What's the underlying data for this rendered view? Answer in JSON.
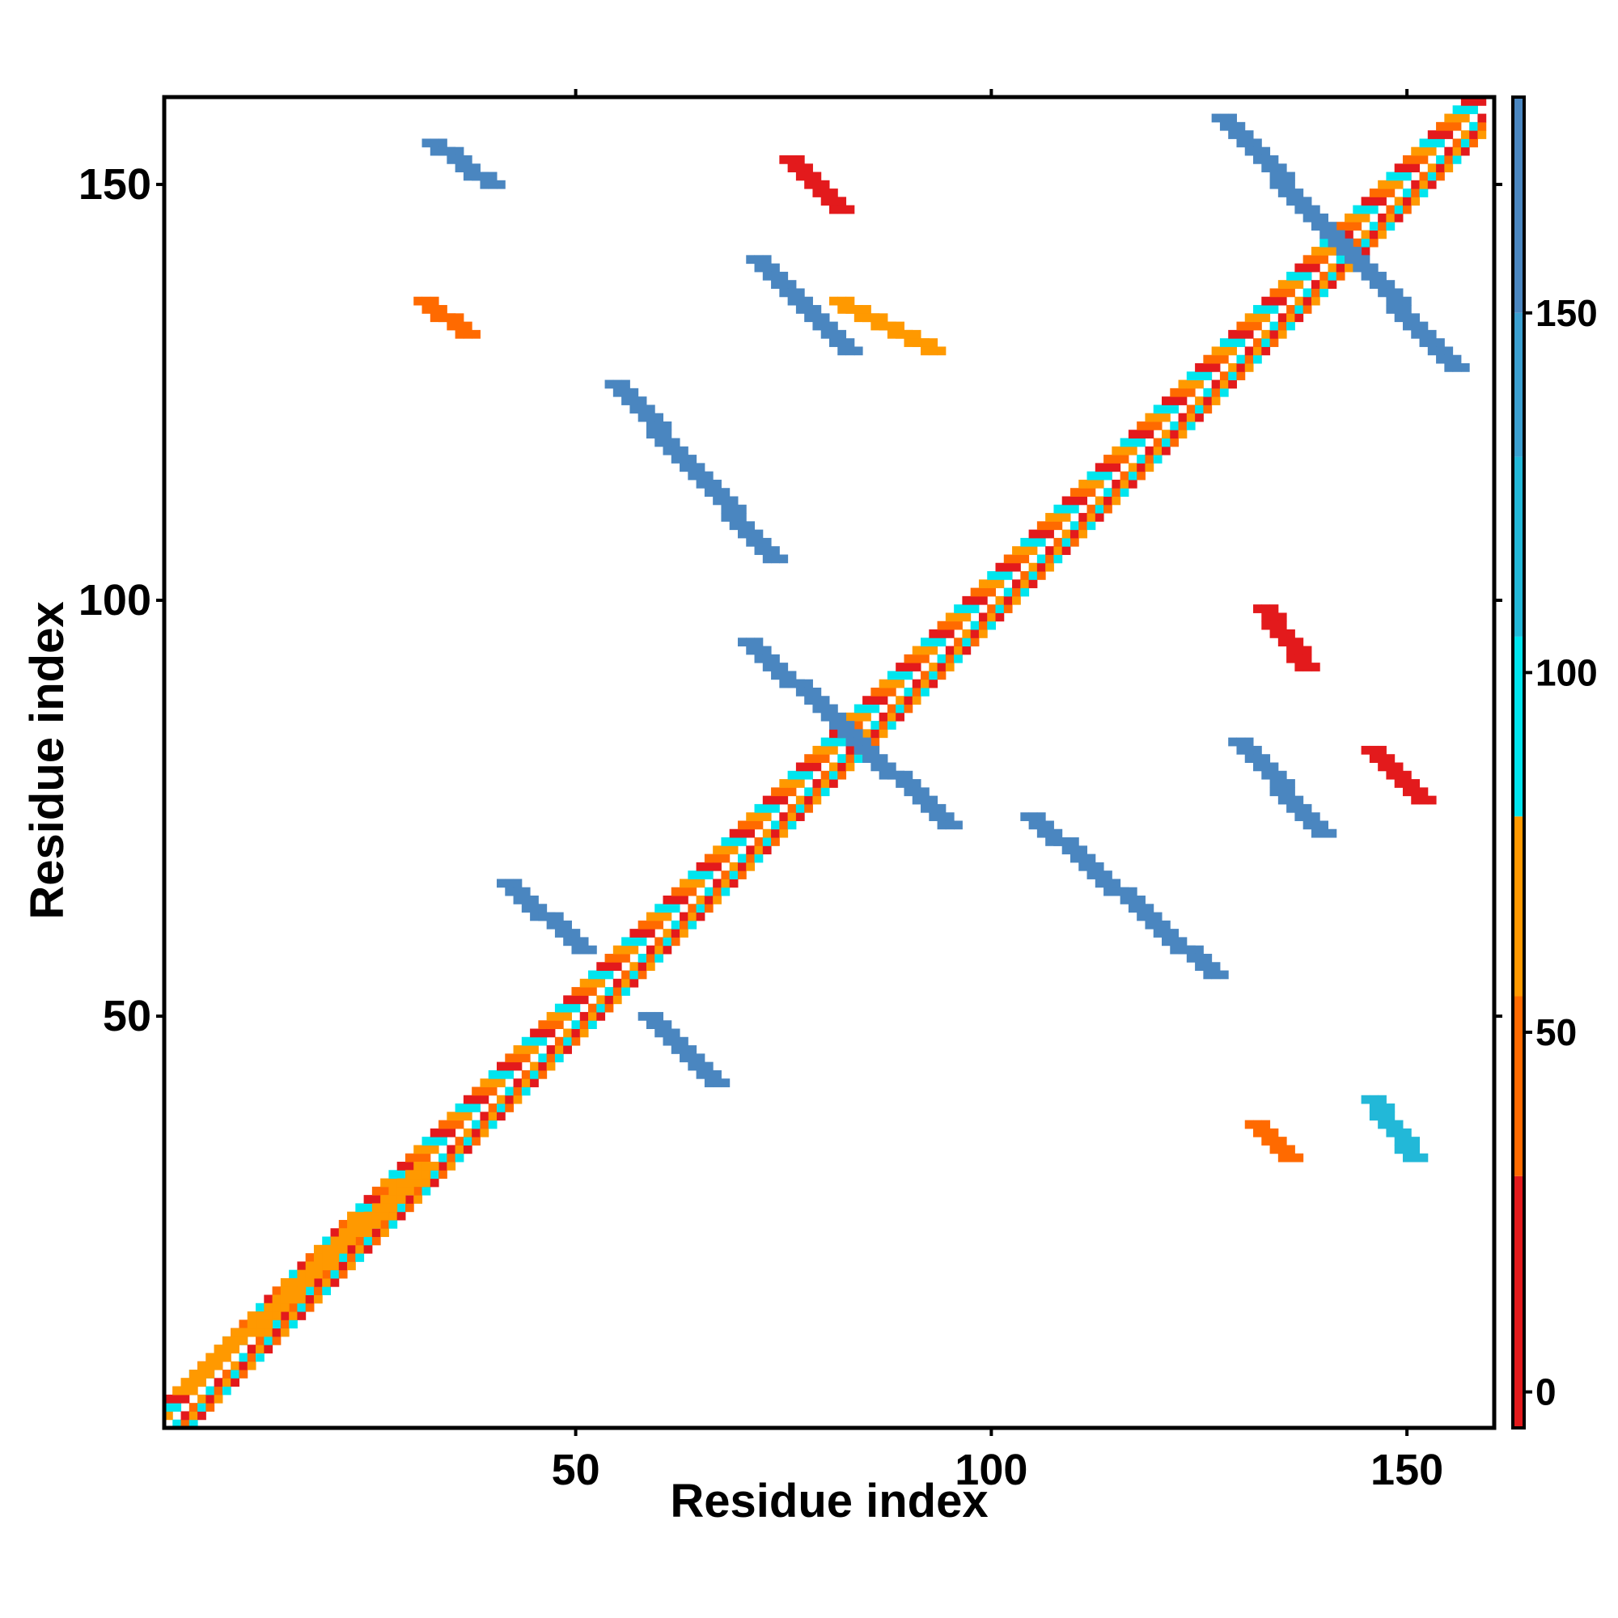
{
  "chart_data": {
    "type": "heatmap",
    "title": "",
    "xlabel": "Residue index",
    "ylabel": "Residue index",
    "xlim": [
      1,
      160
    ],
    "ylim": [
      1,
      160
    ],
    "x_ticks": [
      "50",
      "100",
      "150"
    ],
    "y_ticks": [
      "50",
      "100",
      "150"
    ],
    "colorbar": {
      "range": [
        -5,
        180
      ],
      "ticks": [
        "0",
        "50",
        "100",
        "150"
      ],
      "bins": [
        {
          "from": -5,
          "to": 30,
          "color": "#e31a1c"
        },
        {
          "from": 30,
          "to": 55,
          "color": "#ff6a00"
        },
        {
          "from": 55,
          "to": 80,
          "color": "#ff9900"
        },
        {
          "from": 80,
          "to": 105,
          "color": "#00e5ee"
        },
        {
          "from": 105,
          "to": 130,
          "color": "#22b8d8"
        },
        {
          "from": 130,
          "to": 150,
          "color": "#3b9fd0"
        },
        {
          "from": 150,
          "to": 180,
          "color": "#4a86c0"
        },
        {
          "from": 180,
          "to": 185,
          "color": "#ffffff"
        }
      ]
    },
    "diagonal": {
      "from": 1,
      "to": 159,
      "band_colors": [
        "#e31a1c",
        "#ff6a00",
        "#ff9900",
        "#00e5ee"
      ]
    },
    "regions": [
      {
        "name": "parallel",
        "x": [
          3,
          32
        ],
        "y": [
          5,
          32
        ],
        "color": "#ff9900"
      },
      {
        "name": "anti-diag-1",
        "x": [
          42,
          51
        ],
        "y": [
          58,
          66
        ],
        "color": "#4a86c0"
      },
      {
        "name": "anti-diag-2",
        "x": [
          59,
          67
        ],
        "y": [
          42,
          50
        ],
        "color": "#4a86c0"
      },
      {
        "name": "anti-diag-3",
        "x": [
          71,
          95
        ],
        "y": [
          73,
          95
        ],
        "color": "#4a86c0"
      },
      {
        "name": "anti-diag-4",
        "x": [
          55,
          74
        ],
        "y": [
          105,
          126
        ],
        "color": "#4a86c0"
      },
      {
        "name": "anti-diag-5",
        "x": [
          72,
          83
        ],
        "y": [
          130,
          141
        ],
        "color": "#4a86c0"
      },
      {
        "name": "anti-diag-6",
        "x": [
          130,
          140
        ],
        "y": [
          72,
          83
        ],
        "color": "#4a86c0"
      },
      {
        "name": "anti-diag-7",
        "x": [
          105,
          127
        ],
        "y": [
          55,
          74
        ],
        "color": "#4a86c0"
      },
      {
        "name": "anti-diag-8",
        "x": [
          128,
          156
        ],
        "y": [
          128,
          158
        ],
        "color": "#4a86c0"
      },
      {
        "name": "small-blue-1",
        "x": [
          33,
          40
        ],
        "y": [
          150,
          155
        ],
        "color": "#4a86c0"
      },
      {
        "name": "small-blue-2",
        "x": [
          146,
          151
        ],
        "y": [
          33,
          40
        ],
        "color": "#22b8d8"
      },
      {
        "name": "small-red-1",
        "x": [
          76,
          82
        ],
        "y": [
          147,
          153
        ],
        "color": "#e31a1c"
      },
      {
        "name": "small-red-2",
        "x": [
          133,
          138
        ],
        "y": [
          92,
          99
        ],
        "color": "#e31a1c"
      },
      {
        "name": "small-red-3",
        "x": [
          146,
          152
        ],
        "y": [
          76,
          82
        ],
        "color": "#e31a1c"
      },
      {
        "name": "small-orange-1",
        "x": [
          32,
          37
        ],
        "y": [
          132,
          136
        ],
        "color": "#ff6a00"
      },
      {
        "name": "small-orange-2",
        "x": [
          132,
          136
        ],
        "y": [
          33,
          37
        ],
        "color": "#ff6a00"
      },
      {
        "name": "small-orange-3",
        "x": [
          82,
          93
        ],
        "y": [
          130,
          136
        ],
        "color": "#ff9900"
      }
    ]
  }
}
